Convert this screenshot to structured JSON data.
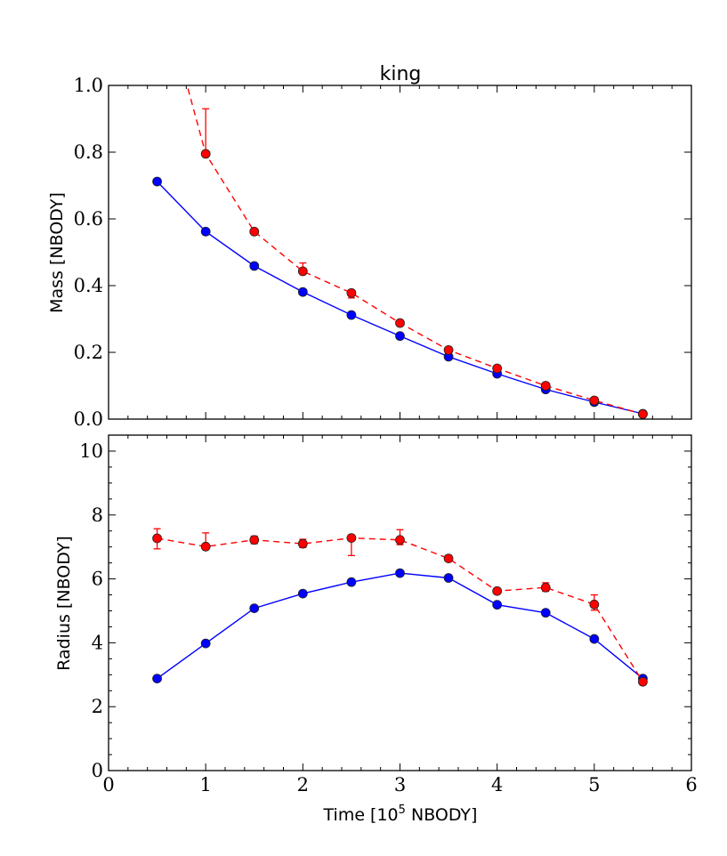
{
  "chart_data": [
    {
      "type": "line",
      "panel": "top",
      "title": "king",
      "xlabel": "",
      "ylabel": "Mass [NBODY]",
      "xlim": [
        0,
        6
      ],
      "ylim": [
        0.0,
        1.0
      ],
      "xticks": [
        0,
        1,
        2,
        3,
        4,
        5,
        6
      ],
      "xtick_labels_visible": false,
      "yticks": [
        0.0,
        0.2,
        0.4,
        0.6,
        0.8,
        1.0
      ],
      "ytick_labels": [
        "0.0",
        "0.2",
        "0.4",
        "0.6",
        "0.8",
        "1.0"
      ],
      "x_minor_step": 0.2,
      "grid": false,
      "series": [
        {
          "name": "blue-solid",
          "color": "#0000ff",
          "linestyle": "solid",
          "marker": "circle",
          "x": [
            0.5,
            1.0,
            1.5,
            2.0,
            2.5,
            3.0,
            3.5,
            4.0,
            4.5,
            5.0,
            5.5
          ],
          "y": [
            0.712,
            0.562,
            0.459,
            0.381,
            0.312,
            0.249,
            0.187,
            0.136,
            0.089,
            0.051,
            0.016
          ]
        },
        {
          "name": "red-dashed",
          "color": "#ff0000",
          "linestyle": "dashed",
          "marker": "circle",
          "x": [
            0.5,
            1.0,
            1.5,
            2.0,
            2.5,
            3.0,
            3.5,
            4.0,
            4.5,
            5.0,
            5.5
          ],
          "y": [
            1.33,
            0.795,
            0.562,
            0.443,
            0.378,
            0.288,
            0.207,
            0.152,
            0.1,
            0.056,
            0.015
          ],
          "yerr_low": [
            0.0,
            0.0,
            0.004,
            0.0,
            0.015,
            0.0,
            0.0,
            0.0,
            0.0,
            0.0,
            0.0
          ],
          "yerr_high": [
            0.0,
            0.135,
            0.006,
            0.025,
            0.006,
            0.004,
            0.004,
            0.003,
            0.003,
            0.002,
            0.002
          ]
        }
      ]
    },
    {
      "type": "line",
      "panel": "bottom",
      "title": "",
      "xlabel": "Time [10^5 NBODY]",
      "xlabel_parts": {
        "pre": "Time [10",
        "sup": "5",
        "post": " NBODY]"
      },
      "ylabel": "Radius [NBODY]",
      "xlim": [
        0,
        6
      ],
      "ylim": [
        0,
        10.5
      ],
      "xticks": [
        0,
        1,
        2,
        3,
        4,
        5,
        6
      ],
      "xtick_labels": [
        "0",
        "1",
        "2",
        "3",
        "4",
        "5",
        "6"
      ],
      "yticks": [
        0,
        2,
        4,
        6,
        8,
        10
      ],
      "ytick_labels": [
        "0",
        "2",
        "4",
        "6",
        "8",
        "10"
      ],
      "x_minor_step": 0.2,
      "y_minor_step": 0.5,
      "grid": false,
      "series": [
        {
          "name": "blue-solid",
          "color": "#0000ff",
          "linestyle": "solid",
          "marker": "circle",
          "x": [
            0.5,
            1.0,
            1.5,
            2.0,
            2.5,
            3.0,
            3.5,
            4.0,
            4.5,
            5.0,
            5.5
          ],
          "y": [
            2.88,
            3.98,
            5.08,
            5.54,
            5.9,
            6.18,
            6.03,
            5.19,
            4.94,
            4.12,
            2.88
          ]
        },
        {
          "name": "red-dashed",
          "color": "#ff0000",
          "linestyle": "dashed",
          "marker": "circle",
          "x": [
            0.5,
            1.0,
            1.5,
            2.0,
            2.5,
            3.0,
            3.5,
            4.0,
            4.5,
            5.0,
            5.5
          ],
          "y": [
            7.27,
            7.01,
            7.22,
            7.1,
            7.28,
            7.22,
            6.64,
            5.62,
            5.73,
            5.2,
            2.78
          ],
          "yerr_low": [
            0.33,
            0.05,
            0.12,
            0.12,
            0.55,
            0.15,
            0.05,
            0.06,
            0.12,
            0.18,
            0.02
          ],
          "yerr_high": [
            0.3,
            0.43,
            0.12,
            0.14,
            0.05,
            0.32,
            0.05,
            0.06,
            0.15,
            0.3,
            0.02
          ]
        }
      ]
    }
  ]
}
